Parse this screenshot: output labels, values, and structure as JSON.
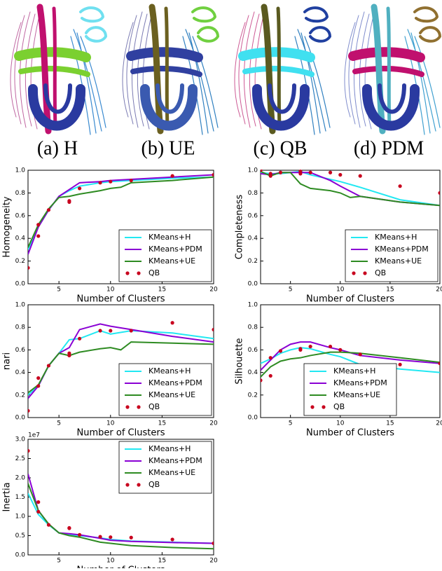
{
  "panels": [
    {
      "caption": "(a) H"
    },
    {
      "caption": "(b) UE"
    },
    {
      "caption": "(c) QB"
    },
    {
      "caption": "(d) PDM"
    }
  ],
  "chart_data": [
    {
      "type": "line",
      "y_label": "Homogeneity",
      "x_label": "Number of Clusters",
      "xlim": [
        2,
        20
      ],
      "xticks": [
        5,
        10,
        15,
        20
      ],
      "ylim": [
        0,
        1
      ],
      "yticks": [
        {
          "value": 0,
          "label": "0.0"
        },
        0.2,
        0.4,
        0.6,
        0.8,
        {
          "value": 1,
          "label": "1.0"
        }
      ],
      "legend": "lower right",
      "series": [
        {
          "name": "KMeans+H",
          "color": "#22e8f2",
          "style": "line",
          "x": [
            2,
            3,
            4,
            5,
            6,
            7,
            9,
            10,
            12,
            16,
            20
          ],
          "values": [
            0.3,
            0.5,
            0.65,
            0.77,
            0.82,
            0.86,
            0.89,
            0.9,
            0.91,
            0.93,
            0.94
          ]
        },
        {
          "name": "KMeans+PDM",
          "color": "#8a00d4",
          "style": "line",
          "x": [
            2,
            3,
            4,
            5,
            6,
            7,
            9,
            10,
            12,
            16,
            20
          ],
          "values": [
            0.26,
            0.5,
            0.65,
            0.77,
            0.83,
            0.89,
            0.9,
            0.91,
            0.92,
            0.94,
            0.96
          ]
        },
        {
          "name": "KMeans+UE",
          "color": "#2e8b22",
          "style": "line",
          "x": [
            2,
            3,
            4,
            5,
            6,
            7,
            9,
            10,
            11,
            12,
            16,
            20
          ],
          "values": [
            0.32,
            0.52,
            0.66,
            0.76,
            0.77,
            0.79,
            0.82,
            0.84,
            0.85,
            0.89,
            0.91,
            0.94
          ]
        },
        {
          "name": "QB",
          "color": "#c8001e",
          "style": "points",
          "x": [
            2,
            3,
            3,
            4,
            6,
            6,
            7,
            9,
            10,
            12,
            16,
            20
          ],
          "values": [
            0.14,
            0.42,
            0.52,
            0.65,
            0.72,
            0.73,
            0.84,
            0.89,
            0.9,
            0.91,
            0.95,
            0.96
          ]
        }
      ]
    },
    {
      "type": "line",
      "y_label": "Completeness",
      "x_label": "Number of Clusters",
      "xlim": [
        2,
        20
      ],
      "xticks": [
        5,
        10,
        15,
        20
      ],
      "ylim": [
        0,
        1
      ],
      "yticks": [
        {
          "value": 0,
          "label": "0.0"
        },
        0.2,
        0.4,
        0.6,
        0.8,
        {
          "value": 1,
          "label": "1.0"
        }
      ],
      "legend": "lower right",
      "series": [
        {
          "name": "KMeans+H",
          "color": "#22e8f2",
          "style": "line",
          "x": [
            2,
            3,
            4,
            5,
            6,
            7,
            9,
            10,
            12,
            16,
            20
          ],
          "values": [
            0.98,
            0.97,
            0.97,
            0.98,
            0.99,
            0.96,
            0.92,
            0.9,
            0.85,
            0.74,
            0.69
          ]
        },
        {
          "name": "KMeans+PDM",
          "color": "#8a00d4",
          "style": "line",
          "x": [
            2,
            3,
            4,
            5,
            6,
            7,
            9,
            10,
            12,
            16,
            20
          ],
          "values": [
            0.97,
            0.96,
            0.98,
            0.98,
            0.98,
            0.98,
            0.91,
            0.86,
            0.77,
            0.72,
            0.69
          ]
        },
        {
          "name": "KMeans+UE",
          "color": "#2e8b22",
          "style": "line",
          "x": [
            2,
            3,
            4,
            5,
            6,
            7,
            9,
            10,
            11,
            12,
            16,
            20
          ],
          "values": [
            0.99,
            0.95,
            0.98,
            0.98,
            0.88,
            0.84,
            0.82,
            0.8,
            0.76,
            0.77,
            0.72,
            0.69
          ]
        },
        {
          "name": "QB",
          "color": "#c8001e",
          "style": "points",
          "x": [
            2,
            3,
            3,
            4,
            6,
            6,
            7,
            9,
            10,
            12,
            16,
            20
          ],
          "values": [
            1.0,
            0.97,
            0.95,
            0.98,
            0.97,
            0.99,
            0.98,
            0.98,
            0.96,
            0.95,
            0.86,
            0.8
          ]
        }
      ]
    },
    {
      "type": "line",
      "y_label": "nari",
      "x_label": "Number of Clusters",
      "xlim": [
        2,
        20
      ],
      "xticks": [
        5,
        10,
        15,
        20
      ],
      "ylim": [
        0,
        1
      ],
      "yticks": [
        {
          "value": 0,
          "label": "0.0"
        },
        0.2,
        0.4,
        0.6,
        0.8,
        {
          "value": 1,
          "label": "1.0"
        }
      ],
      "legend": "lower right",
      "series": [
        {
          "name": "KMeans+H",
          "color": "#22e8f2",
          "style": "line",
          "x": [
            2,
            3,
            4,
            5,
            6,
            7,
            9,
            10,
            12,
            16,
            20
          ],
          "values": [
            0.2,
            0.28,
            0.46,
            0.57,
            0.69,
            0.7,
            0.77,
            0.74,
            0.77,
            0.75,
            0.7
          ]
        },
        {
          "name": "KMeans+PDM",
          "color": "#8a00d4",
          "style": "line",
          "x": [
            2,
            3,
            4,
            5,
            6,
            7,
            9,
            10,
            12,
            16,
            20
          ],
          "values": [
            0.17,
            0.28,
            0.46,
            0.57,
            0.62,
            0.78,
            0.83,
            0.81,
            0.78,
            0.72,
            0.67
          ]
        },
        {
          "name": "KMeans+UE",
          "color": "#2e8b22",
          "style": "line",
          "x": [
            2,
            3,
            4,
            5,
            6,
            7,
            9,
            10,
            11,
            12,
            16,
            20
          ],
          "values": [
            0.22,
            0.29,
            0.46,
            0.57,
            0.55,
            0.58,
            0.61,
            0.62,
            0.6,
            0.67,
            0.66,
            0.65
          ]
        },
        {
          "name": "QB",
          "color": "#c8001e",
          "style": "points",
          "x": [
            2,
            3,
            3,
            4,
            6,
            6,
            7,
            9,
            10,
            12,
            16,
            20
          ],
          "values": [
            0.06,
            0.28,
            0.35,
            0.46,
            0.55,
            0.57,
            0.7,
            0.77,
            0.77,
            0.77,
            0.84,
            0.78
          ]
        }
      ]
    },
    {
      "type": "line",
      "y_label": "Silhouette",
      "x_label": "Number of Clusters",
      "xlim": [
        2,
        20
      ],
      "xticks": [
        5,
        10,
        15,
        20
      ],
      "ylim": [
        0,
        1
      ],
      "yticks": [
        {
          "value": 0,
          "label": "0.0"
        },
        0.2,
        0.4,
        0.6,
        0.8,
        {
          "value": 1,
          "label": "1.0"
        }
      ],
      "legend": "lower center",
      "series": [
        {
          "name": "KMeans+H",
          "color": "#22e8f2",
          "style": "line",
          "x": [
            2,
            3,
            4,
            5,
            6,
            7,
            9,
            10,
            12,
            16,
            20
          ],
          "values": [
            0.48,
            0.52,
            0.57,
            0.6,
            0.62,
            0.61,
            0.56,
            0.54,
            0.47,
            0.43,
            0.4
          ]
        },
        {
          "name": "KMeans+PDM",
          "color": "#8a00d4",
          "style": "line",
          "x": [
            2,
            3,
            4,
            5,
            6,
            7,
            9,
            10,
            12,
            16,
            20
          ],
          "values": [
            0.42,
            0.51,
            0.6,
            0.65,
            0.67,
            0.67,
            0.62,
            0.6,
            0.55,
            0.51,
            0.48
          ]
        },
        {
          "name": "KMeans+UE",
          "color": "#2e8b22",
          "style": "line",
          "x": [
            2,
            3,
            4,
            5,
            6,
            7,
            9,
            10,
            12,
            16,
            20
          ],
          "values": [
            0.36,
            0.45,
            0.5,
            0.52,
            0.53,
            0.55,
            0.58,
            0.58,
            0.57,
            0.53,
            0.49
          ]
        },
        {
          "name": "QB",
          "color": "#c8001e",
          "style": "points",
          "x": [
            2,
            3,
            3,
            4,
            6,
            6,
            7,
            9,
            10,
            12,
            16,
            20
          ],
          "values": [
            0.33,
            0.37,
            0.53,
            0.59,
            0.6,
            0.61,
            0.63,
            0.63,
            0.6,
            0.56,
            0.47,
            0.48
          ]
        }
      ]
    },
    {
      "type": "line",
      "y_label": "Inertia",
      "x_label": "Number of Clusters",
      "offset_label": "1e7",
      "xlim": [
        2,
        20
      ],
      "xticks": [
        5,
        10,
        15,
        20
      ],
      "ylim": [
        0,
        3
      ],
      "yticks": [
        {
          "value": 0,
          "label": "0.0"
        },
        0.5,
        {
          "value": 1,
          "label": "1.0"
        },
        1.5,
        {
          "value": 2,
          "label": "2.0"
        },
        2.5,
        {
          "value": 3,
          "label": "3.0"
        }
      ],
      "legend": "upper right",
      "series": [
        {
          "name": "KMeans+H",
          "color": "#22e8f2",
          "style": "line",
          "x": [
            2,
            3,
            4,
            5,
            6,
            7,
            9,
            10,
            12,
            16,
            20
          ],
          "values": [
            1.6,
            1.05,
            0.78,
            0.57,
            0.53,
            0.5,
            0.44,
            0.4,
            0.36,
            0.33,
            0.3
          ]
        },
        {
          "name": "KMeans+PDM",
          "color": "#8a00d4",
          "style": "line",
          "x": [
            2,
            3,
            4,
            5,
            6,
            7,
            9,
            10,
            12,
            16,
            20
          ],
          "values": [
            2.1,
            1.15,
            0.8,
            0.57,
            0.55,
            0.52,
            0.43,
            0.38,
            0.35,
            0.32,
            0.3
          ]
        },
        {
          "name": "KMeans+UE",
          "color": "#2e8b22",
          "style": "line",
          "x": [
            2,
            3,
            4,
            5,
            6,
            7,
            9,
            10,
            12,
            16,
            20
          ],
          "values": [
            1.85,
            1.15,
            0.8,
            0.57,
            0.5,
            0.46,
            0.33,
            0.3,
            0.24,
            0.19,
            0.16
          ]
        },
        {
          "name": "QB",
          "color": "#c8001e",
          "style": "points",
          "x": [
            2,
            3,
            3,
            4,
            6,
            6,
            7,
            9,
            10,
            12,
            16,
            20
          ],
          "values": [
            2.7,
            1.12,
            1.37,
            0.78,
            0.7,
            0.69,
            0.52,
            0.47,
            0.46,
            0.45,
            0.4,
            0.3
          ]
        }
      ]
    }
  ]
}
